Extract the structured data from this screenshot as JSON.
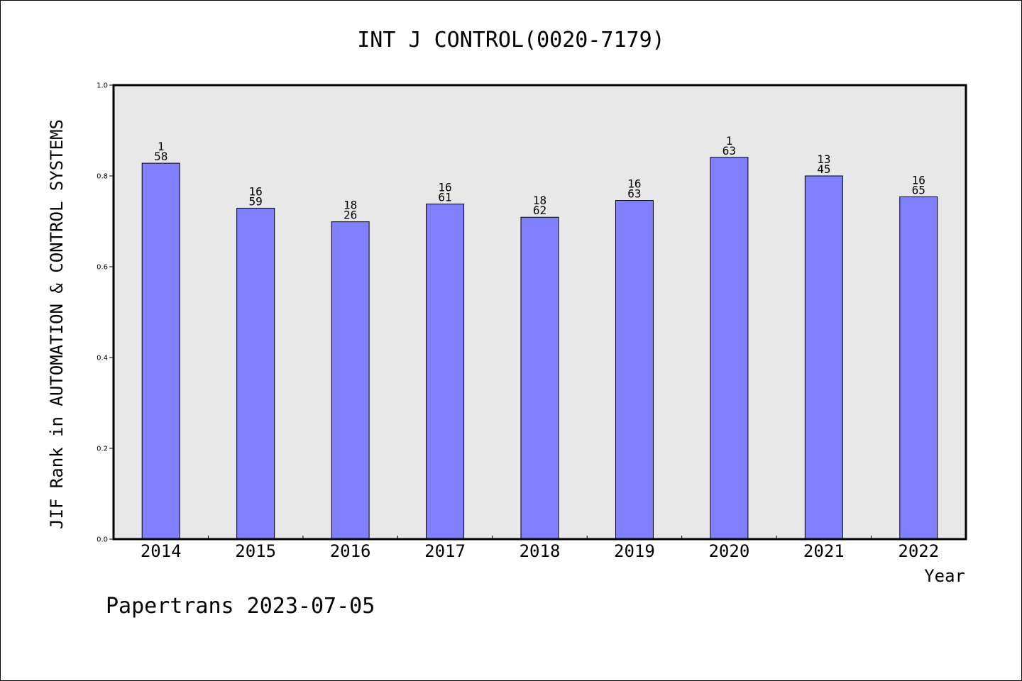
{
  "chart_data": {
    "type": "bar",
    "title": "INT J CONTROL(0020-7179)",
    "xlabel": "Year",
    "ylabel": "JIF Rank in AUTOMATION & CONTROL SYSTEMS",
    "categories": [
      "2014",
      "2015",
      "2016",
      "2017",
      "2018",
      "2019",
      "2020",
      "2021",
      "2022"
    ],
    "values": [
      0.828,
      0.729,
      0.699,
      0.738,
      0.709,
      0.746,
      0.841,
      0.8,
      0.754
    ],
    "rank": [
      "1",
      "16",
      "18",
      "16",
      "18",
      "16",
      "1",
      "13",
      "16"
    ],
    "total": [
      "58",
      "59",
      "26",
      "61",
      "62",
      "63",
      "63",
      "45",
      "65"
    ],
    "ylim": [
      0,
      1
    ],
    "yticks": [
      "0.0",
      "0.2",
      "0.4",
      "0.6",
      "0.8",
      "1.0"
    ],
    "bar_color": "#8080ff",
    "plot_background": "#e8e8e8",
    "grid": false,
    "footer": "Papertrans 2023-07-05"
  }
}
